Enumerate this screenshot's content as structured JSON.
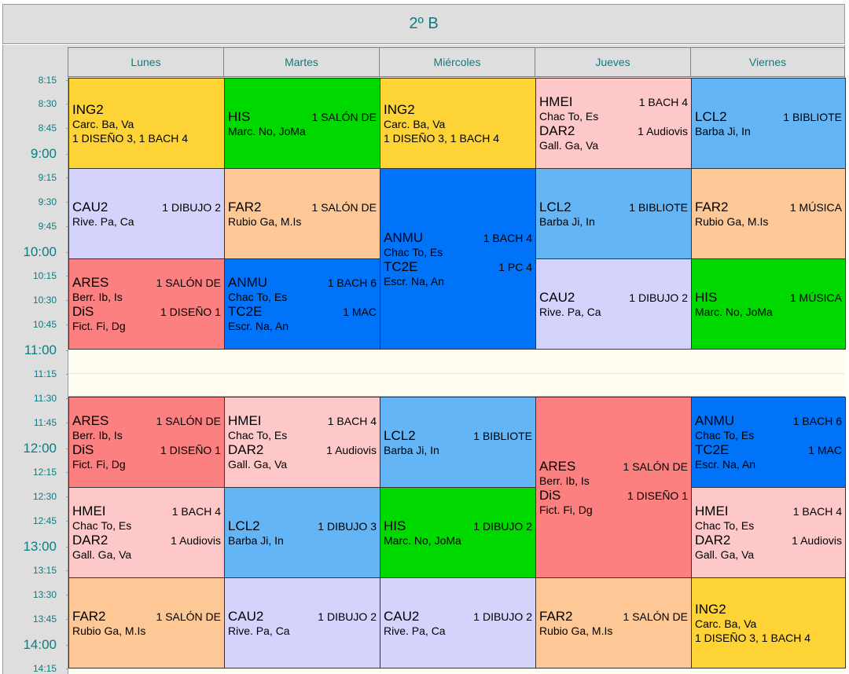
{
  "title": "2º B",
  "days": [
    "Lunes",
    "Martes",
    "Miércoles",
    "Jueves",
    "Viernes"
  ],
  "times": [
    "8:15",
    "8:30",
    "8:45",
    "9:00",
    "9:15",
    "9:30",
    "9:45",
    "10:00",
    "10:15",
    "10:30",
    "10:45",
    "11:00",
    "11:15",
    "11:30",
    "11:45",
    "12:00",
    "12:15",
    "12:30",
    "12:45",
    "13:00",
    "13:15",
    "13:30",
    "13:45",
    "14:00",
    "14:15"
  ],
  "colors": {
    "ING2": "#fdd335",
    "HIS": "#00d900",
    "HMEI": "#fec8c8",
    "LCL2": "#64b5f6",
    "CAU2": "#d3d3fc",
    "FAR2": "#fdc896",
    "ANMU": "#0073f9",
    "ARES": "#fd8080",
    "break": "#fefdf0",
    "accent": "#0d7c82"
  },
  "sessions": [
    {
      "subject": "ING2",
      "teacher": "Carc. Ba, Va",
      "room_line": "1 DISEÑO 3, 1 BACH 4"
    },
    {
      "subject": "HIS",
      "room": "1 SALÓN DE",
      "teacher": "Marc. No, JoMa"
    },
    {
      "subject": "ING2",
      "teacher": "Carc. Ba, Va",
      "room_line": "1 DISEÑO 3, 1 BACH 4"
    },
    {
      "subject": "HMEI",
      "room": "1 BACH 4",
      "teacher": "Chac To, Es",
      "subject2": "DAR2",
      "room2": "1 Audiovis",
      "teacher2": "Gall. Ga, Va"
    },
    {
      "subject": "LCL2",
      "room": "1 BIBLIOTE",
      "teacher": "Barba Ji, In"
    },
    {
      "subject": "CAU2",
      "room": "1 DIBUJO 2",
      "teacher": "Rive. Pa, Ca"
    },
    {
      "subject": "FAR2",
      "room": "1 SALÓN DE",
      "teacher": "Rubio Ga, M.Is"
    },
    {
      "subject": "ANMU",
      "room": "1 BACH 4",
      "teacher": "Chac To, Es",
      "subject2": "TC2E",
      "room2": "1 PC 4",
      "teacher2": "Escr. Na, An"
    },
    {
      "subject": "LCL2",
      "room": "1 BIBLIOTE",
      "teacher": "Barba Ji, In"
    },
    {
      "subject": "FAR2",
      "room": "1 MÚSICA",
      "teacher": "Rubio Ga, M.Is"
    },
    {
      "subject": "ARES",
      "room": "1 SALÓN DE",
      "teacher": "Berr. Ib, Is",
      "subject2": "DiS",
      "room2": "1 DISEÑO 1",
      "teacher2": "Fict. Fi, Dg"
    },
    {
      "subject": "ANMU",
      "room": "1 BACH 6",
      "teacher": "Chac To, Es",
      "subject2": "TC2E",
      "room2": "1 MAC",
      "teacher2": "Escr. Na, An"
    },
    {
      "subject": "CAU2",
      "room": "1 DIBUJO 2",
      "teacher": "Rive. Pa, Ca"
    },
    {
      "subject": "HIS",
      "room": "1 MÚSICA",
      "teacher": "Marc. No, JoMa"
    },
    {
      "subject": "ARES",
      "room": "1 SALÓN DE",
      "teacher": "Berr. Ib, Is",
      "subject2": "DiS",
      "room2": "1 DISEÑO 1",
      "teacher2": "Fict. Fi, Dg"
    },
    {
      "subject": "HMEI",
      "room": "1 BACH 4",
      "teacher": "Chac To, Es",
      "subject2": "DAR2",
      "room2": "1 Audiovis",
      "teacher2": "Gall. Ga, Va"
    },
    {
      "subject": "LCL2",
      "room": "1 BIBLIOTE",
      "teacher": "Barba Ji, In"
    },
    {
      "subject": "ARES",
      "room": "1 SALÓN DE",
      "teacher": "Berr. Ib, Is",
      "subject2": "DiS",
      "room2": "1 DISEÑO 1",
      "teacher2": "Fict. Fi, Dg"
    },
    {
      "subject": "ANMU",
      "room": "1 BACH 6",
      "teacher": "Chac To, Es",
      "subject2": "TC2E",
      "room2": "1 MAC",
      "teacher2": "Escr. Na, An"
    },
    {
      "subject": "HMEI",
      "room": "1 BACH 4",
      "teacher": "Chac To, Es",
      "subject2": "DAR2",
      "room2": "1 Audiovis",
      "teacher2": "Gall. Ga, Va"
    },
    {
      "subject": "LCL2",
      "room": "1 DIBUJO 3",
      "teacher": "Barba Ji, In"
    },
    {
      "subject": "HIS",
      "room": "1 DIBUJO 2",
      "teacher": "Marc. No, JoMa"
    },
    {
      "subject": "HMEI",
      "room": "1 BACH 4",
      "teacher": "Chac To, Es",
      "subject2": "DAR2",
      "room2": "1 Audiovis",
      "teacher2": "Gall. Ga, Va"
    },
    {
      "subject": "FAR2",
      "room": "1 SALÓN DE",
      "teacher": "Rubio Ga, M.Is"
    },
    {
      "subject": "CAU2",
      "room": "1 DIBUJO 2",
      "teacher": "Rive. Pa, Ca"
    },
    {
      "subject": "CAU2",
      "room": "1 DIBUJO 2",
      "teacher": "Rive. Pa, Ca"
    },
    {
      "subject": "FAR2",
      "room": "1 SALÓN DE",
      "teacher": "Rubio Ga, M.Is"
    },
    {
      "subject": "ING2",
      "teacher": "Carc. Ba, Va",
      "room_line": "1 DISEÑO 3, 1 BACH 4"
    }
  ]
}
